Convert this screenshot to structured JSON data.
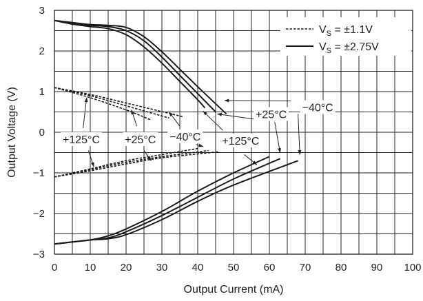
{
  "chart_data": {
    "type": "line",
    "title": "",
    "xlabel": "Output Current (mA)",
    "ylabel": "Output Voltage (V)",
    "xlim": [
      0,
      100
    ],
    "ylim": [
      -3,
      3
    ],
    "xticks": [
      0,
      10,
      20,
      30,
      40,
      50,
      60,
      70,
      80,
      90,
      100
    ],
    "yticks": [
      3,
      2,
      1,
      0,
      -1,
      -2,
      -3
    ],
    "grid": true,
    "legend_position": "top-right",
    "legend": [
      {
        "label_main": "V",
        "label_sub": "S",
        "label_rest": " = ±1.1V",
        "style": "dashed"
      },
      {
        "label_main": "V",
        "label_sub": "S",
        "label_rest": " = ±2.75V",
        "style": "solid"
      }
    ],
    "series": [
      {
        "supply": "±2.75V",
        "temp": "+125°C",
        "style": "solid",
        "swing": "high",
        "x": [
          0,
          5,
          10,
          15,
          20,
          25,
          30,
          35,
          40,
          42
        ],
        "y": [
          2.75,
          2.66,
          2.6,
          2.55,
          2.4,
          2.1,
          1.7,
          1.25,
          0.8,
          0.6
        ]
      },
      {
        "supply": "±2.75V",
        "temp": "+25°C",
        "style": "solid",
        "swing": "high",
        "x": [
          0,
          5,
          10,
          15,
          20,
          25,
          30,
          35,
          40,
          45
        ],
        "y": [
          2.75,
          2.68,
          2.63,
          2.6,
          2.5,
          2.25,
          1.85,
          1.4,
          0.95,
          0.5
        ]
      },
      {
        "supply": "±2.75V",
        "temp": "-40°C",
        "style": "solid",
        "swing": "high",
        "x": [
          0,
          5,
          10,
          15,
          20,
          25,
          30,
          35,
          40,
          45,
          48
        ],
        "y": [
          2.75,
          2.7,
          2.65,
          2.63,
          2.58,
          2.35,
          1.98,
          1.55,
          1.12,
          0.7,
          0.45
        ]
      },
      {
        "supply": "±2.75V",
        "temp": "+125°C",
        "style": "solid",
        "swing": "low",
        "x": [
          0,
          5,
          10,
          15,
          20,
          30,
          40,
          50,
          60
        ],
        "y": [
          -2.75,
          -2.7,
          -2.65,
          -2.55,
          -2.38,
          -1.95,
          -1.45,
          -1.0,
          -0.6
        ]
      },
      {
        "supply": "±2.75V",
        "temp": "+25°C",
        "style": "solid",
        "swing": "low",
        "x": [
          0,
          5,
          10,
          15,
          20,
          30,
          40,
          50,
          63
        ],
        "y": [
          -2.75,
          -2.7,
          -2.65,
          -2.6,
          -2.45,
          -2.05,
          -1.6,
          -1.15,
          -0.65
        ]
      },
      {
        "supply": "±2.75V",
        "temp": "-40°C",
        "style": "solid",
        "swing": "low",
        "x": [
          0,
          5,
          10,
          15,
          20,
          30,
          40,
          50,
          68
        ],
        "y": [
          -2.75,
          -2.7,
          -2.65,
          -2.62,
          -2.52,
          -2.15,
          -1.7,
          -1.3,
          -0.7
        ]
      },
      {
        "supply": "±1.1V",
        "temp": "+125°C",
        "style": "dashed",
        "swing": "high",
        "x": [
          0,
          10,
          20,
          27
        ],
        "y": [
          1.1,
          0.85,
          0.55,
          0.3
        ]
      },
      {
        "supply": "±1.1V",
        "temp": "+25°C",
        "style": "dashed",
        "swing": "high",
        "x": [
          0,
          10,
          20,
          32
        ],
        "y": [
          1.1,
          0.9,
          0.65,
          0.35
        ]
      },
      {
        "supply": "±1.1V",
        "temp": "-40°C",
        "style": "dashed",
        "swing": "high",
        "x": [
          0,
          10,
          20,
          36
        ],
        "y": [
          1.1,
          0.93,
          0.72,
          0.38
        ]
      },
      {
        "supply": "±1.1V",
        "temp": "+125°C",
        "style": "dashed",
        "swing": "low",
        "x": [
          0,
          10,
          20,
          30,
          40
        ],
        "y": [
          -1.1,
          -0.9,
          -0.7,
          -0.55,
          -0.4
        ]
      },
      {
        "supply": "±1.1V",
        "temp": "+25°C",
        "style": "dashed",
        "swing": "low",
        "x": [
          0,
          10,
          20,
          30,
          43
        ],
        "y": [
          -1.1,
          -0.92,
          -0.74,
          -0.6,
          -0.45
        ]
      },
      {
        "supply": "±1.1V",
        "temp": "-40°C",
        "style": "dashed",
        "swing": "low",
        "x": [
          0,
          10,
          20,
          30,
          46
        ],
        "y": [
          -1.1,
          -0.95,
          -0.78,
          -0.63,
          -0.48
        ]
      }
    ],
    "annotations": [
      {
        "text": "−40°C",
        "x": 73.5,
        "y": 0.62,
        "arrows": [
          {
            "from": [
              66,
              0.77
            ],
            "to": [
              47.5,
              0.78
            ]
          },
          {
            "from": [
              68,
              0.45
            ],
            "to": [
              68.5,
              -0.55
            ]
          }
        ]
      },
      {
        "text": "+25°C",
        "x": 60.5,
        "y": 0.45,
        "arrows": [
          {
            "from": [
              56,
              0.32
            ],
            "to": [
              45.5,
              0.45
            ]
          },
          {
            "from": [
              61.5,
              0.25
            ],
            "to": [
              63,
              -0.5
            ]
          }
        ]
      },
      {
        "text": "+125°C",
        "x": 52,
        "y": -0.2,
        "arrows": [
          {
            "from": [
              47,
              0.05
            ],
            "to": [
              41.5,
              0.52
            ]
          },
          {
            "from": [
              53,
              -0.55
            ],
            "to": [
              56.5,
              -0.8
            ]
          }
        ]
      },
      {
        "text": "+125°C",
        "x": 7.5,
        "y": -0.17,
        "arrows": [
          {
            "from": [
              8,
              0.1
            ],
            "to": [
              9,
              0.85
            ]
          },
          {
            "from": [
              9.5,
              -0.45
            ],
            "to": [
              11,
              -0.85
            ]
          }
        ]
      },
      {
        "text": "+25°C",
        "x": 24,
        "y": -0.17,
        "arrows": [
          {
            "from": [
              23,
              0.15
            ],
            "to": [
              21.5,
              0.55
            ]
          },
          {
            "from": [
              25,
              -0.45
            ],
            "to": [
              27,
              -0.7
            ]
          }
        ]
      },
      {
        "text": "−40°C",
        "x": 36.5,
        "y": -0.1,
        "arrows": [
          {
            "from": [
              35,
              0.15
            ],
            "to": [
              32,
              0.5
            ]
          },
          {
            "from": [
              39.5,
              -0.3
            ],
            "to": [
              41.5,
              -0.35
            ]
          }
        ]
      }
    ]
  }
}
